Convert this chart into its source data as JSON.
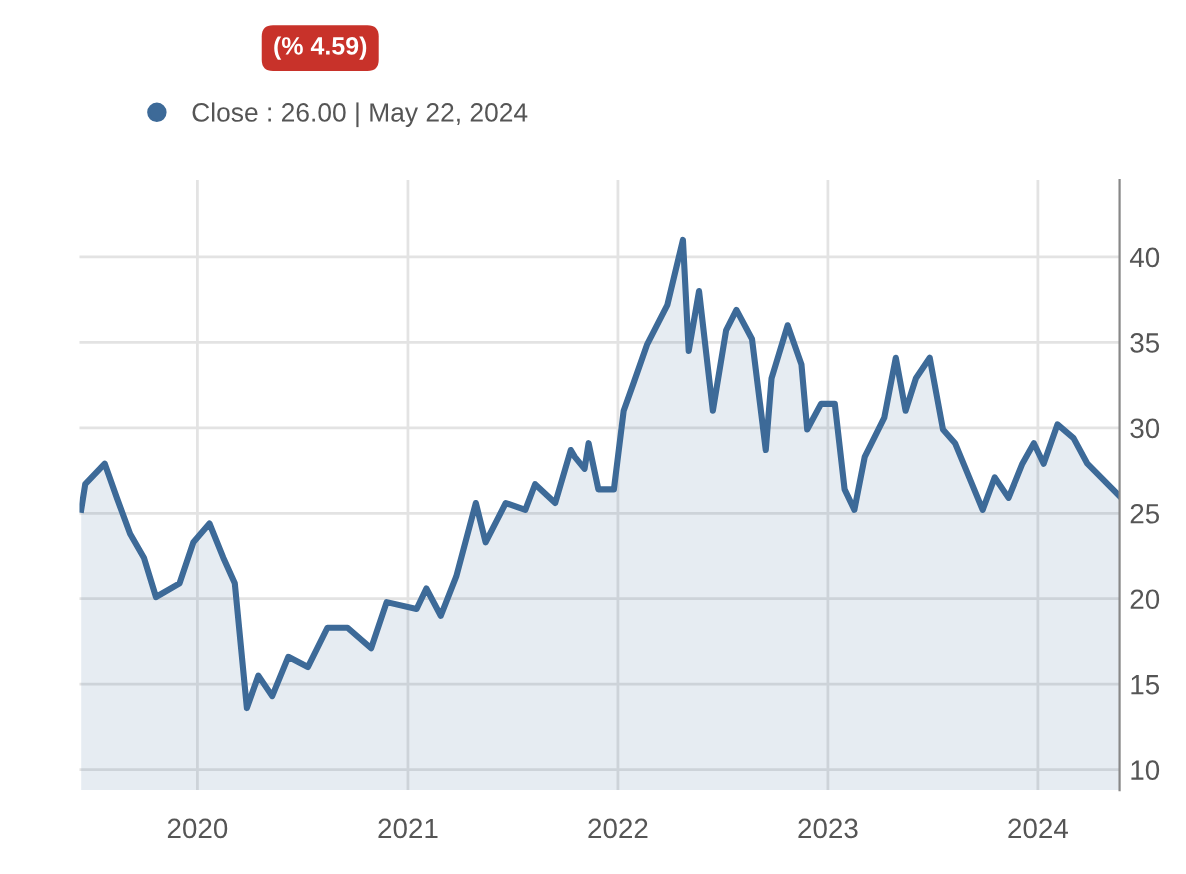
{
  "chart_data": {
    "type": "area",
    "annotations": [
      "(% 4.59)"
    ],
    "x": [
      "2019-06-13",
      "2019-06-20",
      "2019-07-24",
      "2019-08-14",
      "2019-09-06",
      "2019-09-30",
      "2019-10-21",
      "2019-12-01",
      "2019-12-25",
      "2020-01-22",
      "2020-02-15",
      "2020-03-06",
      "2020-03-27",
      "2020-04-16",
      "2020-05-10",
      "2020-06-07",
      "2020-07-11",
      "2020-08-14",
      "2020-09-18",
      "2020-10-29",
      "2020-11-25",
      "2021-01-16",
      "2021-02-02",
      "2021-02-27",
      "2021-03-26",
      "2021-04-29",
      "2021-05-16",
      "2021-06-20",
      "2021-07-24",
      "2021-08-10",
      "2021-09-14",
      "2021-10-11",
      "2021-10-18",
      "2021-11-04",
      "2021-11-11",
      "2021-11-28",
      "2021-12-25",
      "2022-01-11",
      "2022-01-28",
      "2022-02-21",
      "2022-03-28",
      "2022-04-24",
      "2022-05-04",
      "2022-05-22",
      "2022-06-15",
      "2022-07-08",
      "2022-07-26",
      "2022-08-22",
      "2022-09-15",
      "2022-09-25",
      "2022-10-23",
      "2022-11-16",
      "2022-11-26",
      "2022-12-20",
      "2023-01-13",
      "2023-01-30",
      "2023-02-16",
      "2023-03-06",
      "2023-04-09",
      "2023-04-29",
      "2023-05-16",
      "2023-06-03",
      "2023-06-27",
      "2023-07-20",
      "2023-08-10",
      "2023-09-27",
      "2023-10-18",
      "2023-11-11",
      "2023-12-05",
      "2023-12-25",
      "2024-01-11",
      "2024-02-04",
      "2024-03-03",
      "2024-03-27",
      "2024-05-22"
    ],
    "series": [
      {
        "name": "Close : 26.00 | May 22, 2024",
        "color": "#3d6a98",
        "values": [
          25.2,
          26.7,
          27.9,
          25.9,
          23.8,
          22.4,
          20.1,
          20.9,
          23.3,
          24.4,
          22.4,
          20.9,
          13.6,
          15.5,
          14.3,
          16.6,
          16.0,
          18.3,
          18.3,
          17.1,
          19.8,
          19.4,
          20.6,
          19.0,
          21.3,
          25.6,
          23.3,
          25.6,
          25.2,
          26.7,
          25.6,
          28.7,
          28.3,
          27.6,
          29.1,
          26.4,
          26.4,
          31.0,
          32.6,
          34.9,
          37.2,
          41.0,
          34.5,
          38.0,
          31.0,
          35.7,
          36.9,
          35.2,
          28.7,
          32.9,
          36.0,
          33.7,
          29.9,
          31.4,
          31.4,
          26.4,
          25.2,
          28.3,
          30.6,
          34.1,
          31.0,
          32.9,
          34.1,
          29.9,
          29.1,
          25.2,
          27.1,
          25.9,
          27.9,
          29.1,
          27.9,
          30.2,
          29.4,
          27.9,
          26.0
        ]
      }
    ],
    "xlim": [
      "2019-06-10",
      "2024-05-22"
    ],
    "xticks": [
      {
        "value": "2020-01-01",
        "label": "2020"
      },
      {
        "value": "2021-01-01",
        "label": "2021"
      },
      {
        "value": "2022-01-01",
        "label": "2022"
      },
      {
        "value": "2023-01-01",
        "label": "2023"
      },
      {
        "value": "2024-01-01",
        "label": "2024"
      }
    ],
    "ylim": [
      8.8,
      44.5
    ],
    "yticks": [
      10,
      15,
      20,
      25,
      30,
      35,
      40
    ],
    "grid": true,
    "legend": "top left",
    "marker": "none",
    "line_style": "solid"
  }
}
